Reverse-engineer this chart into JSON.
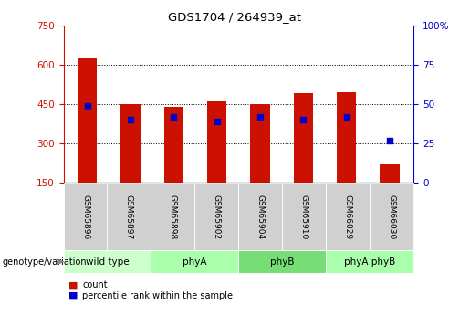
{
  "title": "GDS1704 / 264939_at",
  "samples": [
    "GSM65896",
    "GSM65897",
    "GSM65898",
    "GSM65902",
    "GSM65904",
    "GSM65910",
    "GSM66029",
    "GSM66030"
  ],
  "count_values": [
    625,
    450,
    440,
    460,
    450,
    490,
    493,
    220
  ],
  "percentile_values": [
    49,
    40,
    42,
    39,
    42,
    40,
    42,
    27
  ],
  "bar_color": "#cc1100",
  "dot_color": "#0000cc",
  "groups": [
    {
      "label": "wild type",
      "start": 0,
      "end": 2,
      "color": "#ccffcc"
    },
    {
      "label": "phyA",
      "start": 2,
      "end": 4,
      "color": "#aaffaa"
    },
    {
      "label": "phyB",
      "start": 4,
      "end": 6,
      "color": "#77dd77"
    },
    {
      "label": "phyA phyB",
      "start": 6,
      "end": 8,
      "color": "#aaffaa"
    }
  ],
  "ylim_left": [
    150,
    750
  ],
  "ylim_right": [
    0,
    100
  ],
  "yticks_left": [
    150,
    300,
    450,
    600,
    750
  ],
  "yticks_right": [
    0,
    25,
    50,
    75,
    100
  ],
  "left_axis_color": "#cc1100",
  "right_axis_color": "#0000cc",
  "legend_label_count": "count",
  "legend_label_pct": "percentile rank within the sample",
  "genotype_label": "genotype/variation",
  "background_color": "#ffffff",
  "bar_width": 0.45,
  "grid_color": "black"
}
